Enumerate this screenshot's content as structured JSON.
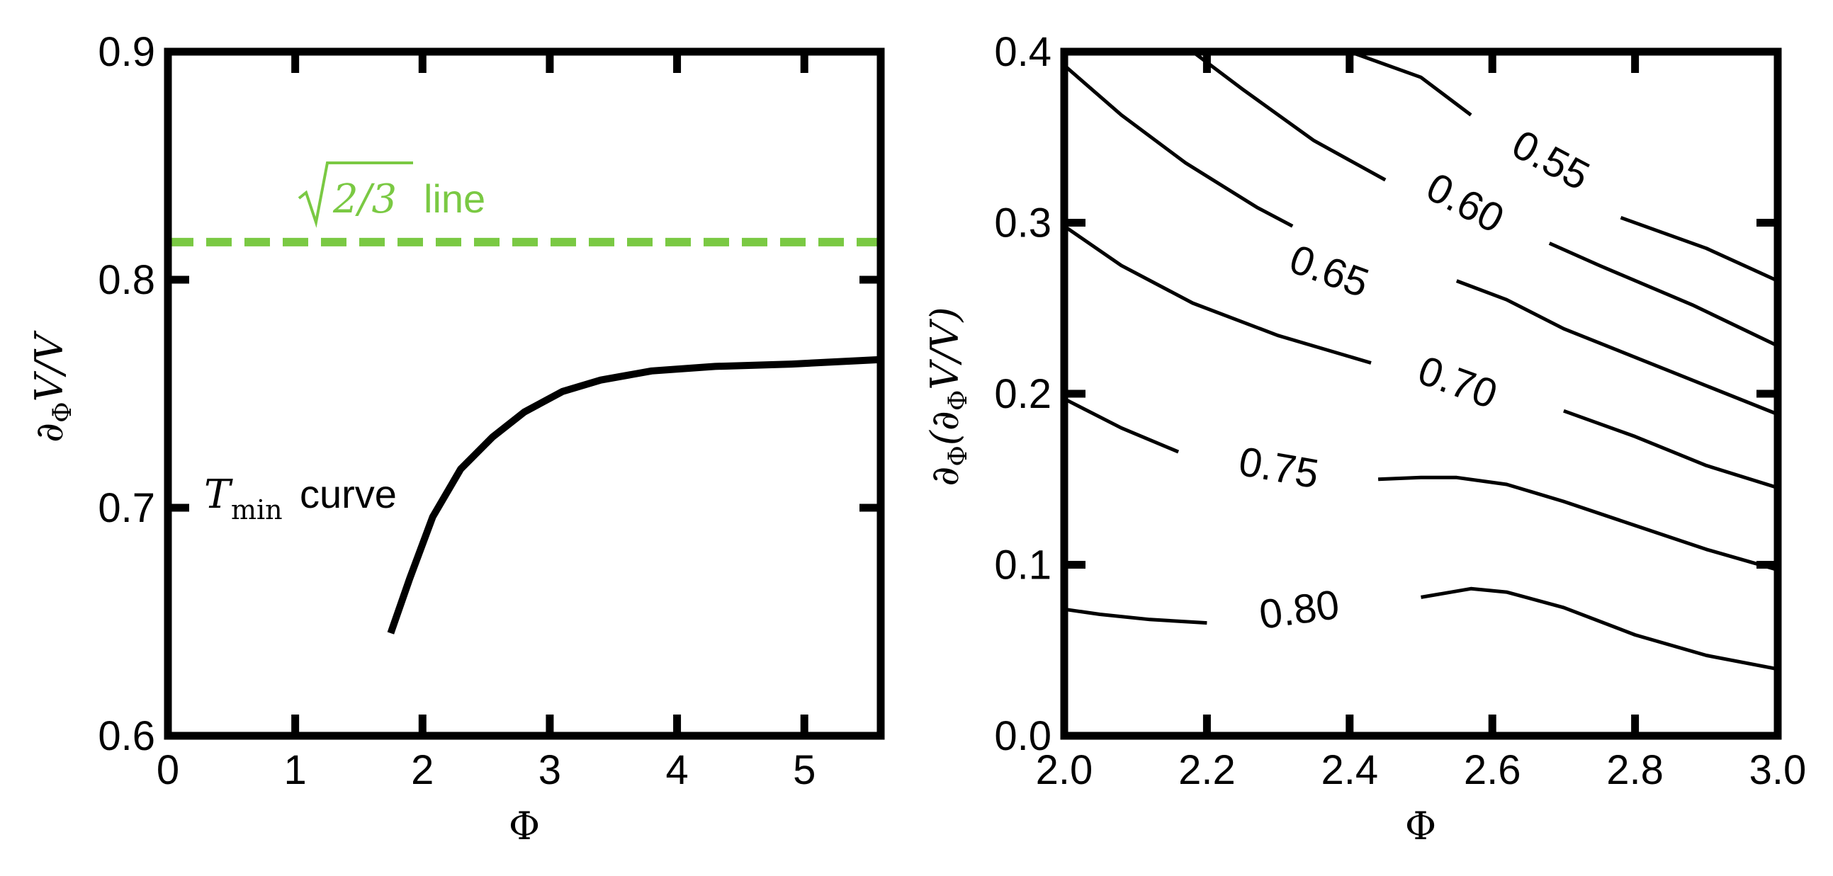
{
  "colors": {
    "ink": "#000000",
    "accent": "#7ac943"
  },
  "left_panel": {
    "xlabel": "Φ",
    "ylabel": {
      "partial": "∂",
      "sub": "Φ",
      "rest": "V/V"
    },
    "annotations": {
      "green": {
        "radicand": "2/3",
        "word": "line"
      },
      "black": {
        "T": "T",
        "sub": "min",
        "word": "curve"
      }
    }
  },
  "right_panel": {
    "xlabel": "Φ",
    "ylabel": {
      "pre": "∂",
      "sub1": "Φ",
      "mid": "(∂",
      "sub2": "Φ",
      "post": "V/V)"
    }
  },
  "chart_data": [
    {
      "type": "line",
      "xlim": [
        0,
        5.6
      ],
      "ylim": [
        0.6,
        0.9
      ],
      "xticks": [
        0,
        1,
        2,
        3,
        4,
        5
      ],
      "yticks": [
        0.6,
        0.7,
        0.8,
        0.9
      ],
      "xtick_labels": [
        "0",
        "1",
        "2",
        "3",
        "4",
        "5"
      ],
      "ytick_labels": [
        "0.6",
        "0.7",
        "0.8",
        "0.9"
      ],
      "grid": false,
      "series": [
        {
          "name": "T_min curve",
          "color": "#000000",
          "style": "solid",
          "x": [
            1.75,
            1.9,
            2.08,
            2.3,
            2.55,
            2.8,
            3.1,
            3.4,
            3.8,
            4.3,
            4.9,
            5.6
          ],
          "y": [
            0.645,
            0.669,
            0.696,
            0.717,
            0.731,
            0.742,
            0.751,
            0.756,
            0.76,
            0.762,
            0.763,
            0.765
          ]
        },
        {
          "name": "√2/3 line",
          "color": "#7ac943",
          "style": "dashed",
          "x": [
            0,
            5.6
          ],
          "y": [
            0.8165,
            0.8165
          ]
        }
      ]
    },
    {
      "type": "contour",
      "xlim": [
        2.0,
        3.0
      ],
      "ylim": [
        0.0,
        0.4
      ],
      "xticks": [
        2.0,
        2.2,
        2.4,
        2.6,
        2.8,
        3.0
      ],
      "yticks": [
        0.0,
        0.1,
        0.2,
        0.3,
        0.4
      ],
      "xtick_labels": [
        "2.0",
        "2.2",
        "2.4",
        "2.6",
        "2.8",
        "3.0"
      ],
      "ytick_labels": [
        "0.0",
        "0.1",
        "0.2",
        "0.3",
        "0.4"
      ],
      "grid": false,
      "levels": [
        {
          "label": "0.55",
          "label_pos": [
            2.68,
            0.335
          ],
          "label_angle": 28,
          "segments": [
            [
              [
                2.4,
                0.4
              ],
              [
                2.5,
                0.385
              ],
              [
                2.57,
                0.363
              ]
            ],
            [
              [
                2.78,
                0.303
              ],
              [
                2.9,
                0.285
              ],
              [
                3.0,
                0.266
              ]
            ]
          ]
        },
        {
          "label": "0.60",
          "label_pos": [
            2.56,
            0.31
          ],
          "label_angle": 28,
          "segments": [
            [
              [
                2.18,
                0.4
              ],
              [
                2.25,
                0.378
              ],
              [
                2.35,
                0.348
              ],
              [
                2.45,
                0.325
              ]
            ],
            [
              [
                2.68,
                0.288
              ],
              [
                2.75,
                0.275
              ],
              [
                2.88,
                0.252
              ],
              [
                3.0,
                0.228
              ]
            ]
          ]
        },
        {
          "label": "0.65",
          "label_pos": [
            2.37,
            0.27
          ],
          "label_angle": 20,
          "segments": [
            [
              [
                2.0,
                0.392
              ],
              [
                2.08,
                0.363
              ],
              [
                2.17,
                0.335
              ],
              [
                2.27,
                0.309
              ],
              [
                2.32,
                0.298
              ]
            ],
            [
              [
                2.55,
                0.266
              ],
              [
                2.62,
                0.255
              ],
              [
                2.7,
                0.238
              ],
              [
                2.85,
                0.213
              ],
              [
                3.0,
                0.188
              ]
            ]
          ]
        },
        {
          "label": "0.70",
          "label_pos": [
            2.55,
            0.205
          ],
          "label_angle": 20,
          "segments": [
            [
              [
                2.0,
                0.298
              ],
              [
                2.08,
                0.275
              ],
              [
                2.18,
                0.253
              ],
              [
                2.3,
                0.234
              ],
              [
                2.43,
                0.218
              ]
            ],
            [
              [
                2.7,
                0.19
              ],
              [
                2.8,
                0.175
              ],
              [
                2.9,
                0.158
              ],
              [
                3.0,
                0.145
              ]
            ]
          ]
        },
        {
          "label": "0.75",
          "label_pos": [
            2.3,
            0.155
          ],
          "label_angle": 10,
          "segments": [
            [
              [
                2.0,
                0.197
              ],
              [
                2.08,
                0.18
              ],
              [
                2.16,
                0.166
              ]
            ],
            [
              [
                2.44,
                0.15
              ],
              [
                2.5,
                0.151
              ],
              [
                2.55,
                0.151
              ],
              [
                2.62,
                0.147
              ],
              [
                2.7,
                0.137
              ],
              [
                2.8,
                0.123
              ],
              [
                2.9,
                0.109
              ],
              [
                3.0,
                0.097
              ]
            ]
          ]
        },
        {
          "label": "0.80",
          "label_pos": [
            2.33,
            0.072
          ],
          "label_angle": -8,
          "segments": [
            [
              [
                2.0,
                0.074
              ],
              [
                2.05,
                0.071
              ],
              [
                2.12,
                0.068
              ],
              [
                2.2,
                0.066
              ]
            ],
            [
              [
                2.5,
                0.081
              ],
              [
                2.57,
                0.086
              ],
              [
                2.62,
                0.084
              ],
              [
                2.7,
                0.075
              ],
              [
                2.8,
                0.059
              ],
              [
                2.9,
                0.047
              ],
              [
                3.0,
                0.039
              ]
            ]
          ]
        }
      ]
    }
  ]
}
